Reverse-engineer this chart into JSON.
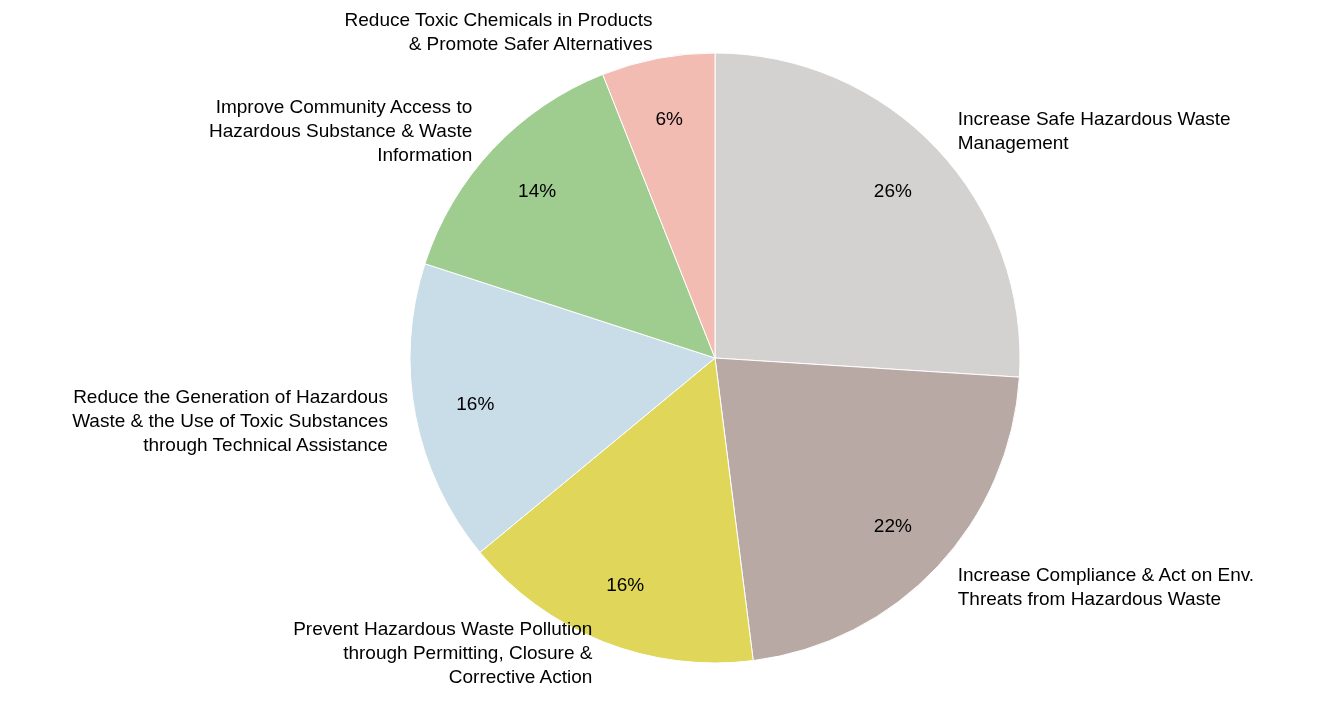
{
  "chart_data": {
    "type": "pie",
    "categories": [
      "Increase Safe Hazardous Waste Management",
      "Increase Compliance & Act on Env. Threats from Hazardous Waste",
      "Prevent Hazardous Waste Pollution through Permitting, Closure & Corrective Action",
      "Reduce the Generation of Hazardous Waste & the Use of Toxic Substances through Technical Assistance",
      "Improve Community Access to Hazardous Substance & Waste Information",
      "Reduce Toxic Chemicals in Products & Promote Safer Alternatives"
    ],
    "values": [
      26,
      22,
      16,
      16,
      14,
      6
    ],
    "value_labels": [
      "26%",
      "22%",
      "16%",
      "16%",
      "14%",
      "6%"
    ],
    "colors": [
      "#d4d2d0",
      "#b9a9a4",
      "#dfd65a",
      "#c8dde8",
      "#9fcc8f",
      "#f2bcb2"
    ]
  }
}
